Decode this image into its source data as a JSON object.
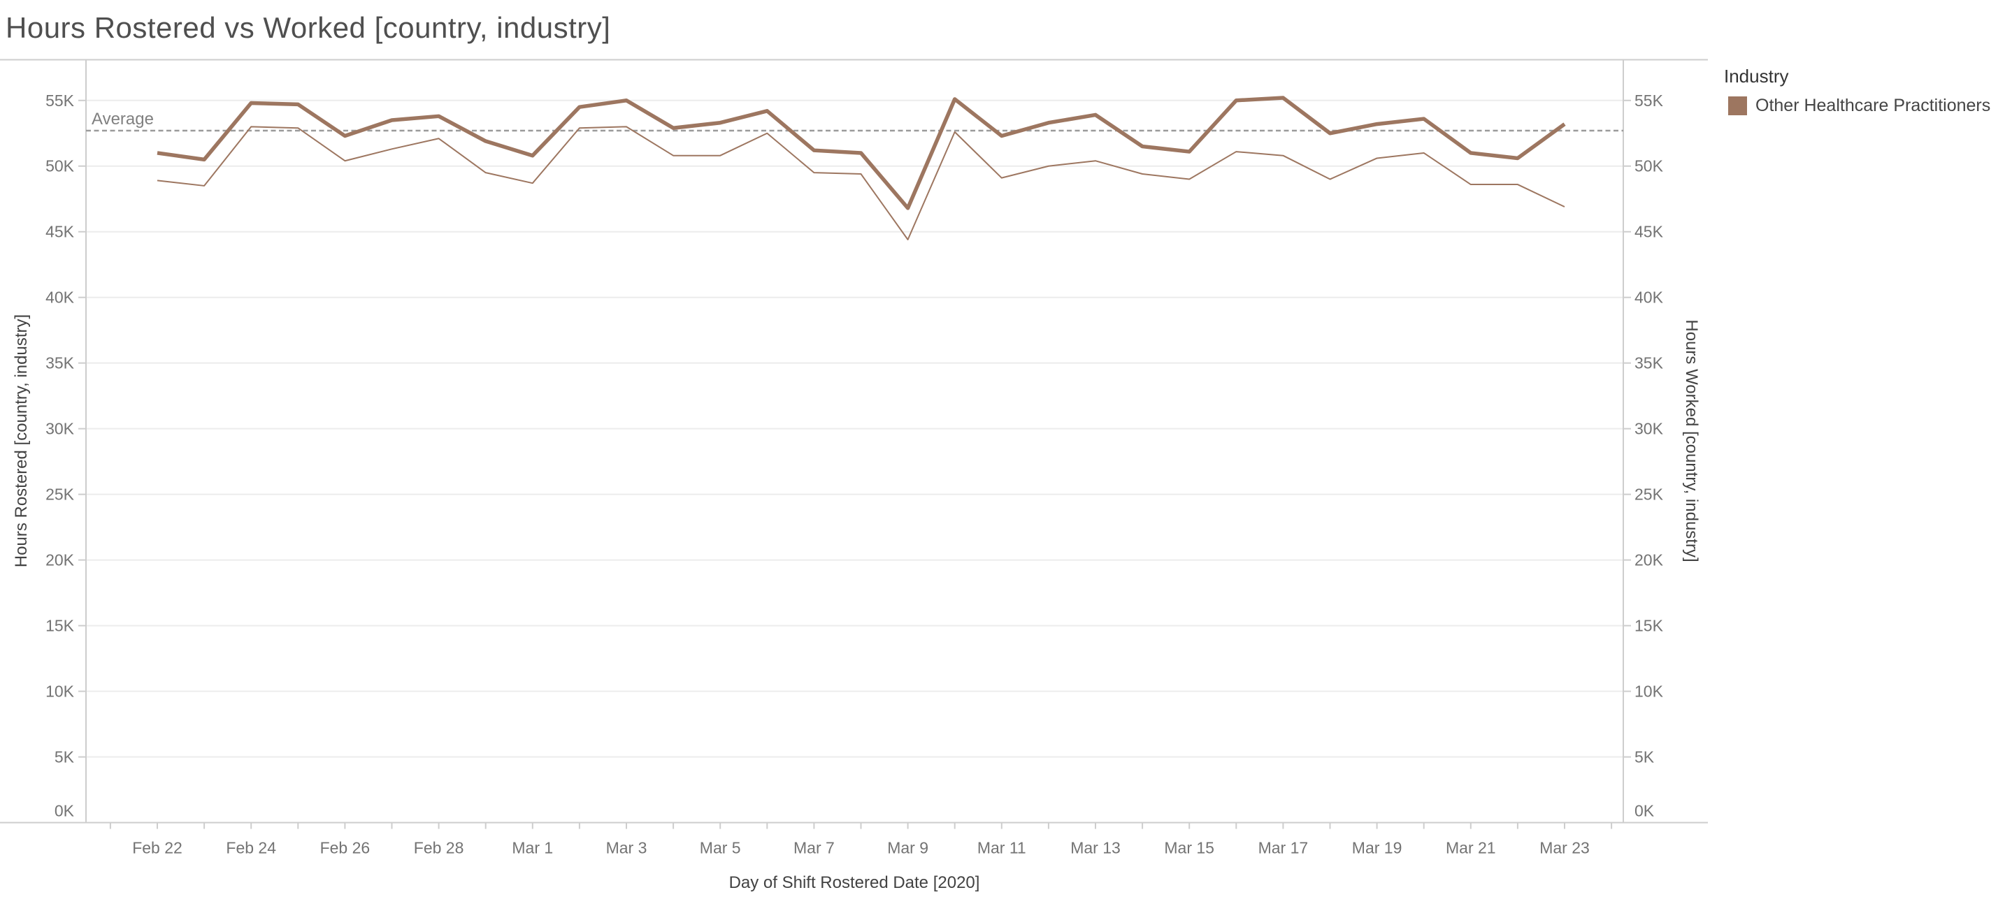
{
  "title": "Hours Rostered vs Worked [country, industry]",
  "colors": {
    "series": "#9d7660",
    "average_line": "#9b9b9b",
    "grid": "#ececec",
    "axis": "#cdcdcd",
    "tick_text": "#737373",
    "title_text": "#4f4f4f",
    "axis_title_text": "#424242"
  },
  "legend": {
    "title": "Industry",
    "items": [
      {
        "label": "Other Healthcare Practitioners",
        "color": "#9d7660"
      }
    ]
  },
  "chart_data": {
    "type": "line",
    "x": [
      "Feb 22",
      "Feb 23",
      "Feb 24",
      "Feb 25",
      "Feb 26",
      "Feb 27",
      "Feb 28",
      "Feb 29",
      "Mar 1",
      "Mar 2",
      "Mar 3",
      "Mar 4",
      "Mar 5",
      "Mar 6",
      "Mar 7",
      "Mar 8",
      "Mar 9",
      "Mar 10",
      "Mar 11",
      "Mar 12",
      "Mar 13",
      "Mar 14",
      "Mar 15",
      "Mar 16",
      "Mar 17",
      "Mar 18",
      "Mar 19",
      "Mar 20",
      "Mar 21",
      "Mar 22",
      "Mar 23"
    ],
    "unit": "thousands of hours",
    "series": [
      {
        "name": "Hours Rostered [country, industry]",
        "axis": "left",
        "style": "thick",
        "values": [
          51.0,
          50.5,
          54.8,
          54.7,
          52.3,
          53.5,
          53.8,
          51.9,
          50.8,
          54.5,
          55.0,
          52.9,
          53.3,
          54.2,
          51.2,
          51.0,
          46.8,
          55.1,
          52.3,
          53.3,
          53.9,
          51.5,
          51.1,
          55.0,
          55.2,
          52.5,
          53.2,
          53.6,
          51.0,
          50.6,
          53.2
        ]
      },
      {
        "name": "Hours Worked [country, industry]",
        "axis": "right",
        "style": "thin",
        "values": [
          48.9,
          48.5,
          53.0,
          52.9,
          50.4,
          51.3,
          52.1,
          49.5,
          48.7,
          52.9,
          53.0,
          50.8,
          50.8,
          52.5,
          49.5,
          49.4,
          44.4,
          52.6,
          49.1,
          50.0,
          50.4,
          49.4,
          49.0,
          51.1,
          50.8,
          49.0,
          50.6,
          51.0,
          48.6,
          48.6,
          46.9
        ]
      }
    ],
    "average_label": "Average",
    "average_value": 52.7,
    "ylim": [
      0,
      58.1
    ],
    "y_tick_values": [
      0,
      5,
      10,
      15,
      20,
      25,
      30,
      35,
      40,
      45,
      50,
      55
    ],
    "y_tick_labels": [
      "0K",
      "5K",
      "10K",
      "15K",
      "20K",
      "25K",
      "30K",
      "35K",
      "40K",
      "45K",
      "50K",
      "55K"
    ],
    "x_tick_labels": [
      "Feb 22",
      "Feb 24",
      "Feb 26",
      "Feb 28",
      "Mar 1",
      "Mar 3",
      "Mar 5",
      "Mar 7",
      "Mar 9",
      "Mar 11",
      "Mar 13",
      "Mar 15",
      "Mar 17",
      "Mar 19",
      "Mar 21",
      "Mar 23"
    ],
    "x_axis_title": "Day of Shift Rostered Date [2020]",
    "y_axis_title_left": "Hours Rostered [country, industry]",
    "y_axis_title_right": "Hours Worked [country, industry]",
    "grid": true,
    "legend_position": "top-right"
  }
}
